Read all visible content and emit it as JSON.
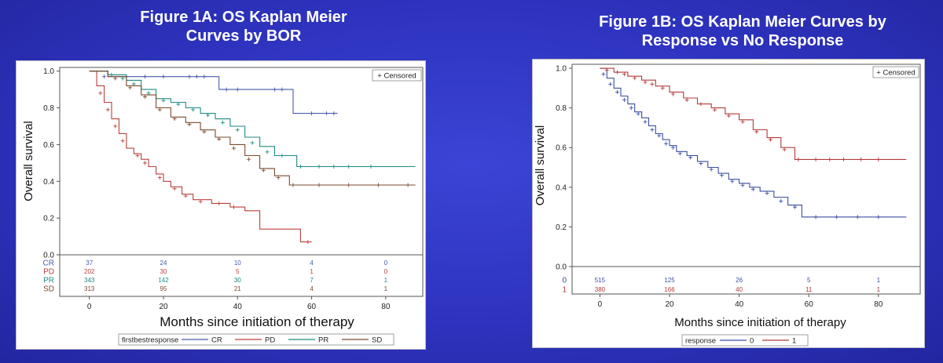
{
  "figures": {
    "a": {
      "title_line1": "Figure 1A: OS Kaplan Meier",
      "title_line2": "Curves by BOR"
    },
    "b": {
      "title_line1": "Figure 1B: OS Kaplan Meier Curves by",
      "title_line2": "Response vs No Response"
    }
  },
  "chart_data": [
    {
      "type": "line",
      "title": "Figure 1A: OS Kaplan Meier Curves by BOR",
      "xlabel": "Months since initiation of therapy",
      "ylabel": "Overall survival",
      "xlim": [
        -8,
        90
      ],
      "ylim": [
        0,
        1.02
      ],
      "x_ticks": [
        0,
        20,
        40,
        60,
        80
      ],
      "y_ticks": [
        0.0,
        0.2,
        0.4,
        0.6,
        0.8,
        1.0
      ],
      "y_tick_labels": [
        "0.0",
        "0.2",
        "0.4",
        "0.6",
        "0.8",
        "1.0"
      ],
      "grid": false,
      "censored_label": "+ Censored",
      "legend_title": "firstbestresponse",
      "legend_position": "bottom",
      "series": [
        {
          "name": "CR",
          "color": "#4a5aa8",
          "x": [
            0,
            3,
            5,
            12,
            35,
            55,
            67
          ],
          "y": [
            1.0,
            1.0,
            0.97,
            0.97,
            0.9,
            0.77,
            0.77
          ],
          "censored": [
            [
              4,
              0.97
            ],
            [
              10,
              0.97
            ],
            [
              15,
              0.97
            ],
            [
              20,
              0.97
            ],
            [
              27,
              0.97
            ],
            [
              29,
              0.97
            ],
            [
              31,
              0.97
            ],
            [
              37,
              0.9
            ],
            [
              40,
              0.9
            ],
            [
              50,
              0.9
            ],
            [
              52,
              0.9
            ],
            [
              60,
              0.77
            ],
            [
              64,
              0.77
            ],
            [
              66,
              0.77
            ]
          ]
        },
        {
          "name": "PD",
          "color": "#b8403a",
          "x": [
            0,
            2,
            4,
            6,
            8,
            10,
            12,
            14,
            16,
            18,
            20,
            22,
            25,
            28,
            33,
            38,
            42,
            46,
            52,
            57,
            60
          ],
          "y": [
            1.0,
            0.92,
            0.83,
            0.74,
            0.66,
            0.58,
            0.55,
            0.52,
            0.48,
            0.44,
            0.4,
            0.37,
            0.33,
            0.3,
            0.28,
            0.26,
            0.24,
            0.14,
            0.14,
            0.07,
            0.07
          ],
          "censored": [
            [
              3,
              0.88
            ],
            [
              5,
              0.79
            ],
            [
              7,
              0.7
            ],
            [
              9,
              0.62
            ],
            [
              13,
              0.54
            ],
            [
              15,
              0.5
            ],
            [
              19,
              0.42
            ],
            [
              23,
              0.36
            ],
            [
              26,
              0.32
            ],
            [
              30,
              0.29
            ],
            [
              35,
              0.28
            ],
            [
              39,
              0.26
            ],
            [
              59,
              0.07
            ]
          ]
        },
        {
          "name": "PR",
          "color": "#1e8a80",
          "x": [
            0,
            5,
            10,
            14,
            18,
            22,
            26,
            30,
            34,
            38,
            42,
            46,
            50,
            56,
            88
          ],
          "y": [
            1.0,
            0.98,
            0.95,
            0.9,
            0.85,
            0.83,
            0.8,
            0.77,
            0.74,
            0.7,
            0.64,
            0.59,
            0.54,
            0.48,
            0.48
          ],
          "censored": [
            [
              6,
              0.98
            ],
            [
              9,
              0.96
            ],
            [
              12,
              0.93
            ],
            [
              16,
              0.88
            ],
            [
              20,
              0.84
            ],
            [
              24,
              0.82
            ],
            [
              28,
              0.79
            ],
            [
              32,
              0.76
            ],
            [
              36,
              0.72
            ],
            [
              40,
              0.68
            ],
            [
              44,
              0.61
            ],
            [
              48,
              0.56
            ],
            [
              52,
              0.54
            ],
            [
              57,
              0.48
            ],
            [
              62,
              0.48
            ],
            [
              66,
              0.48
            ],
            [
              70,
              0.48
            ],
            [
              76,
              0.48
            ]
          ]
        },
        {
          "name": "SD",
          "color": "#7a4a2e",
          "x": [
            0,
            5,
            10,
            14,
            18,
            22,
            26,
            30,
            34,
            38,
            42,
            46,
            50,
            54,
            88
          ],
          "y": [
            1.0,
            0.97,
            0.92,
            0.87,
            0.8,
            0.75,
            0.72,
            0.68,
            0.64,
            0.6,
            0.54,
            0.47,
            0.43,
            0.38,
            0.38
          ],
          "censored": [
            [
              7,
              0.96
            ],
            [
              11,
              0.91
            ],
            [
              15,
              0.86
            ],
            [
              19,
              0.79
            ],
            [
              23,
              0.74
            ],
            [
              27,
              0.71
            ],
            [
              31,
              0.67
            ],
            [
              35,
              0.63
            ],
            [
              39,
              0.58
            ],
            [
              43,
              0.52
            ],
            [
              47,
              0.46
            ],
            [
              51,
              0.42
            ],
            [
              55,
              0.38
            ],
            [
              62,
              0.38
            ],
            [
              70,
              0.38
            ],
            [
              78,
              0.38
            ],
            [
              86,
              0.38
            ]
          ]
        }
      ],
      "risk_table": {
        "times": [
          0,
          20,
          40,
          60,
          80
        ],
        "rows": [
          {
            "label": "CR",
            "color": "#4a5aa8",
            "counts": [
              "37",
              "24",
              "10",
              "4",
              "0"
            ]
          },
          {
            "label": "PD",
            "color": "#b8403a",
            "counts": [
              "202",
              "30",
              "5",
              "1",
              "0"
            ]
          },
          {
            "label": "PR",
            "color": "#1e8a80",
            "counts": [
              "343",
              "142",
              "30",
              "7",
              "1"
            ]
          },
          {
            "label": "SD",
            "color": "#7a4a2e",
            "counts": [
              "313",
              "95",
              "21",
              "4",
              "1"
            ]
          }
        ]
      }
    },
    {
      "type": "line",
      "title": "Figure 1B: OS Kaplan Meier Curves by Response vs No Response",
      "xlabel": "Months since initiation of therapy",
      "ylabel": "Overall survival",
      "xlim": [
        -8,
        92
      ],
      "ylim": [
        0,
        1.02
      ],
      "x_ticks": [
        0,
        20,
        40,
        60,
        80
      ],
      "y_ticks": [
        0.0,
        0.2,
        0.4,
        0.6,
        0.8,
        1.0
      ],
      "y_tick_labels": [
        "0.0",
        "0.2",
        "0.4",
        "0.6",
        "0.8",
        "1.0"
      ],
      "grid": false,
      "censored_label": "+ Censored",
      "legend_title": "response",
      "legend_position": "bottom",
      "series": [
        {
          "name": "0",
          "color": "#3c4ea0",
          "x": [
            0,
            2,
            4,
            6,
            8,
            10,
            12,
            14,
            16,
            18,
            20,
            22,
            25,
            28,
            31,
            34,
            37,
            40,
            43,
            46,
            50,
            54,
            58,
            88
          ],
          "y": [
            1.0,
            0.95,
            0.9,
            0.86,
            0.82,
            0.78,
            0.75,
            0.71,
            0.67,
            0.64,
            0.61,
            0.58,
            0.56,
            0.53,
            0.5,
            0.47,
            0.44,
            0.42,
            0.4,
            0.38,
            0.35,
            0.31,
            0.25,
            0.25
          ],
          "censored": [
            [
              1,
              0.97
            ],
            [
              3,
              0.92
            ],
            [
              5,
              0.88
            ],
            [
              7,
              0.84
            ],
            [
              9,
              0.8
            ],
            [
              11,
              0.77
            ],
            [
              13,
              0.73
            ],
            [
              15,
              0.69
            ],
            [
              17,
              0.66
            ],
            [
              19,
              0.62
            ],
            [
              21,
              0.6
            ],
            [
              23,
              0.57
            ],
            [
              26,
              0.55
            ],
            [
              29,
              0.52
            ],
            [
              32,
              0.49
            ],
            [
              35,
              0.46
            ],
            [
              38,
              0.43
            ],
            [
              41,
              0.41
            ],
            [
              44,
              0.39
            ],
            [
              48,
              0.37
            ],
            [
              52,
              0.33
            ],
            [
              56,
              0.3
            ],
            [
              62,
              0.25
            ],
            [
              68,
              0.25
            ],
            [
              74,
              0.25
            ],
            [
              80,
              0.25
            ]
          ]
        },
        {
          "name": "1",
          "color": "#b03a3a",
          "x": [
            0,
            4,
            8,
            12,
            16,
            20,
            24,
            28,
            32,
            36,
            40,
            44,
            48,
            52,
            56,
            88
          ],
          "y": [
            1.0,
            0.98,
            0.96,
            0.94,
            0.91,
            0.88,
            0.85,
            0.82,
            0.8,
            0.77,
            0.74,
            0.69,
            0.65,
            0.6,
            0.54,
            0.54
          ],
          "censored": [
            [
              2,
              0.99
            ],
            [
              5,
              0.98
            ],
            [
              7,
              0.97
            ],
            [
              10,
              0.95
            ],
            [
              13,
              0.93
            ],
            [
              15,
              0.92
            ],
            [
              18,
              0.9
            ],
            [
              21,
              0.87
            ],
            [
              25,
              0.84
            ],
            [
              29,
              0.82
            ],
            [
              33,
              0.79
            ],
            [
              37,
              0.76
            ],
            [
              41,
              0.73
            ],
            [
              45,
              0.68
            ],
            [
              49,
              0.64
            ],
            [
              53,
              0.59
            ],
            [
              57,
              0.54
            ],
            [
              62,
              0.54
            ],
            [
              66,
              0.54
            ],
            [
              70,
              0.54
            ],
            [
              75,
              0.54
            ],
            [
              80,
              0.54
            ]
          ]
        }
      ],
      "risk_table": {
        "times": [
          0,
          20,
          40,
          60,
          80
        ],
        "rows": [
          {
            "label": "0",
            "color": "#3c4ea0",
            "counts": [
              "515",
              "125",
              "26",
              "5",
              "1"
            ]
          },
          {
            "label": "1",
            "color": "#b03a3a",
            "counts": [
              "380",
              "166",
              "40",
              "11",
              "1"
            ]
          }
        ]
      }
    }
  ]
}
